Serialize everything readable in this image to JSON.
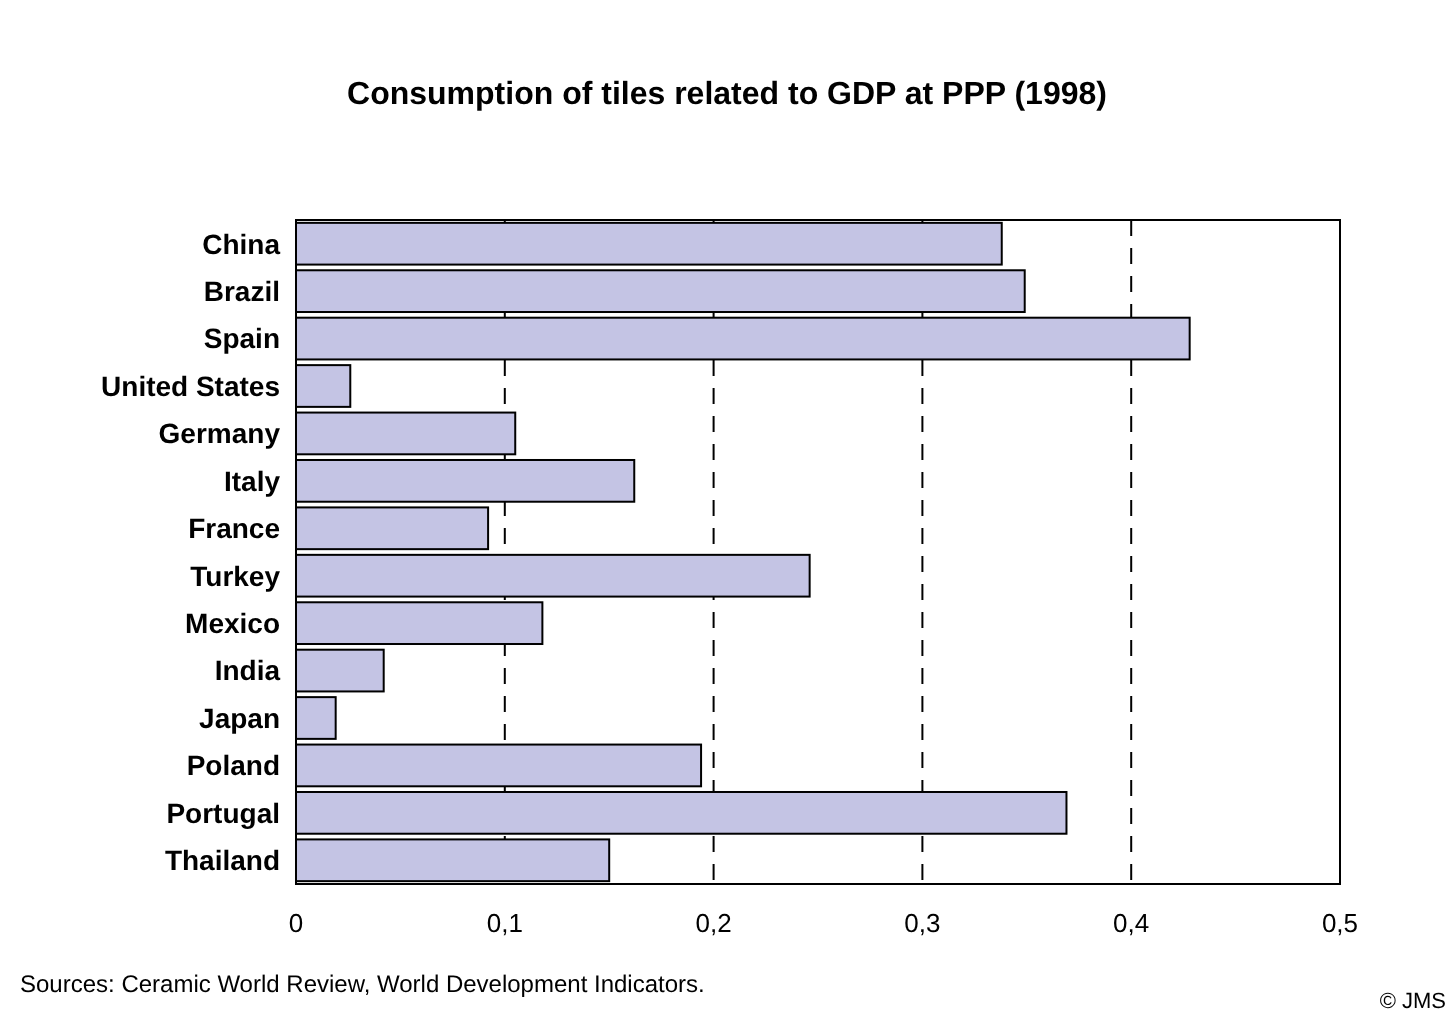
{
  "chart_data": {
    "type": "bar",
    "orientation": "horizontal",
    "title": "Consumption of tiles related to GDP at PPP (1998)",
    "categories": [
      "China",
      "Brazil",
      "Spain",
      "United States",
      "Germany",
      "Italy",
      "France",
      "Turkey",
      "Mexico",
      "India",
      "Japan",
      "Poland",
      "Portugal",
      "Thailand"
    ],
    "values": [
      0.338,
      0.349,
      0.428,
      0.026,
      0.105,
      0.162,
      0.092,
      0.246,
      0.118,
      0.042,
      0.019,
      0.194,
      0.369,
      0.15
    ],
    "color": "#c4c4e4",
    "xlim": [
      0,
      0.5
    ],
    "xticks": [
      0,
      {
        "value": 0.1,
        "label": "0,1"
      },
      {
        "value": 0.2,
        "label": "0,2"
      },
      {
        "value": 0.3,
        "label": "0,3"
      },
      {
        "value": 0.4,
        "label": "0,4"
      },
      {
        "value": 0.5,
        "label": "0,5"
      }
    ],
    "grid": "x",
    "annotations": [
      "Sources: Ceramic World Review, World Development Indicators.",
      "© JMS"
    ]
  }
}
